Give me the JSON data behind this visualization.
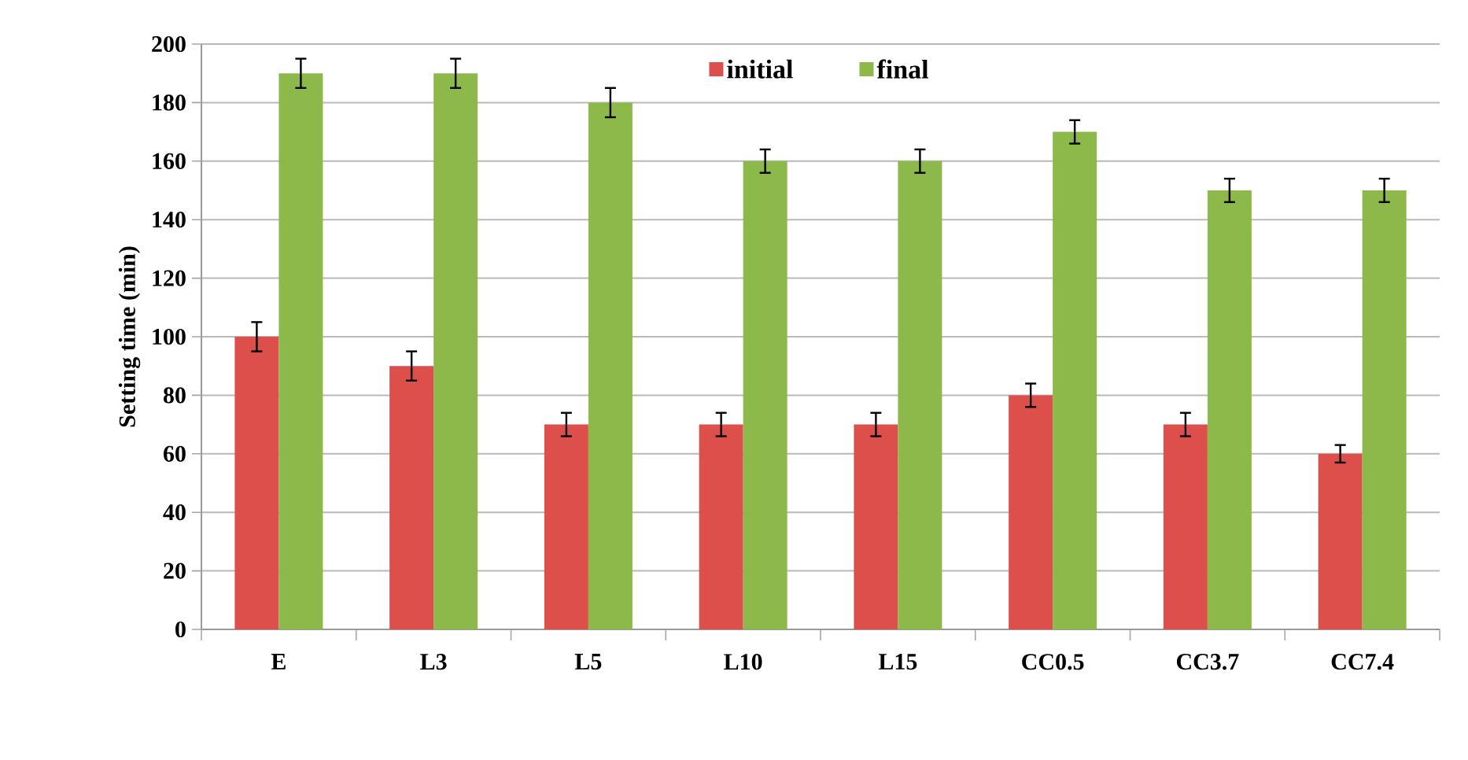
{
  "chart_data": {
    "type": "bar",
    "ylabel": "Setting time (min)",
    "categories": [
      "E",
      "L3",
      "L5",
      "L10",
      "L15",
      "CC0.5",
      "CC3.7",
      "CC7.4"
    ],
    "series": [
      {
        "name": "initial",
        "color": "#dc4f4b",
        "values": [
          100,
          90,
          70,
          70,
          70,
          80,
          70,
          60
        ],
        "errors": [
          5,
          5,
          4,
          4,
          4,
          4,
          4,
          3
        ]
      },
      {
        "name": "final",
        "color": "#8db84a",
        "values": [
          190,
          190,
          180,
          160,
          160,
          170,
          150,
          150
        ],
        "errors": [
          5,
          5,
          5,
          4,
          4,
          4,
          4,
          4
        ]
      }
    ],
    "ylim": [
      0,
      200
    ],
    "yticks": [
      0,
      20,
      40,
      60,
      80,
      100,
      120,
      140,
      160,
      180,
      200
    ],
    "grid": "y",
    "legend": "top"
  }
}
